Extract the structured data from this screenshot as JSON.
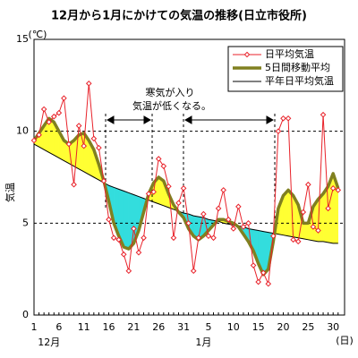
{
  "chart_data": {
    "type": "line",
    "title": "12月から1月にかけての気温の推移(日立市役所)",
    "y_unit": "(℃)",
    "y_label": "気温",
    "x_unit": "(日)",
    "annotation": [
      "寒気が入り",
      "気温が低くなる。"
    ],
    "categories": [
      "1",
      null,
      null,
      null,
      null,
      "6",
      null,
      null,
      null,
      null,
      "11",
      null,
      null,
      null,
      null,
      "16",
      null,
      null,
      null,
      null,
      "21",
      null,
      null,
      null,
      null,
      "26",
      null,
      null,
      null,
      null,
      "31",
      null,
      null,
      null,
      null,
      "5",
      null,
      null,
      null,
      null,
      "10",
      null,
      null,
      null,
      null,
      "15",
      null,
      null,
      null,
      null,
      "20",
      null,
      null,
      null,
      null,
      "25",
      null,
      null,
      null,
      null,
      "30",
      null
    ],
    "x_groups": [
      {
        "label": "12月",
        "start": 0
      },
      {
        "label": "1月",
        "start": 31
      }
    ],
    "ylim": [
      0,
      15
    ],
    "yticks": [
      0,
      5,
      10,
      15
    ],
    "grid": true,
    "fill_above": "#ffff33",
    "fill_below": "#33dddd",
    "series": [
      {
        "name": "日平均気温",
        "color": "#e8222a",
        "style": "markers",
        "values": [
          9.5,
          9.8,
          11.2,
          10.5,
          10.8,
          11.0,
          11.8,
          9.3,
          7.1,
          10.3,
          9.2,
          12.6,
          9.6,
          9.1,
          7.3,
          5.2,
          4.2,
          4.1,
          3.3,
          2.4,
          4.7,
          3.4,
          4.2,
          6.6,
          6.7,
          8.5,
          8.1,
          7.0,
          4.2,
          6.1,
          6.9,
          5.0,
          2.4,
          4.2,
          5.5,
          4.3,
          4.2,
          5.8,
          6.8,
          5.2,
          4.7,
          5.9,
          4.8,
          5.0,
          2.7,
          1.8,
          2.3,
          1.7,
          4.3,
          10.0,
          10.7,
          10.7,
          4.1,
          4.0,
          5.6,
          7.1,
          4.8,
          4.6,
          10.9,
          5.8,
          6.9,
          6.8
        ]
      },
      {
        "name": "5日間移動平均",
        "color": "#808020",
        "style": "thick",
        "values": [
          9.5,
          9.9,
          10.3,
          10.7,
          10.5,
          10.0,
          9.5,
          9.3,
          9.5,
          9.8,
          9.9,
          9.5,
          9.0,
          8.2,
          7.3,
          6.2,
          5.0,
          4.3,
          3.7,
          3.6,
          3.9,
          4.6,
          5.6,
          6.6,
          7.2,
          7.5,
          7.3,
          6.6,
          6.0,
          5.6,
          5.3,
          4.7,
          4.3,
          4.1,
          4.3,
          4.6,
          4.9,
          5.2,
          5.2,
          5.1,
          5.0,
          4.8,
          4.4,
          4.0,
          3.5,
          2.8,
          2.2,
          2.5,
          4.0,
          5.8,
          6.5,
          6.8,
          6.5,
          6.0,
          5.0,
          5.0,
          5.9,
          6.3,
          6.6,
          7.0,
          7.7,
          6.9
        ]
      },
      {
        "name": "平年日平均気温",
        "color": "#000000",
        "style": "thin",
        "values": [
          9.3,
          9.15,
          9.0,
          8.85,
          8.7,
          8.55,
          8.4,
          8.25,
          8.1,
          7.95,
          7.8,
          7.65,
          7.5,
          7.35,
          7.2,
          7.05,
          6.95,
          6.85,
          6.75,
          6.65,
          6.55,
          6.45,
          6.35,
          6.25,
          6.15,
          6.05,
          5.95,
          5.85,
          5.75,
          5.65,
          5.55,
          5.5,
          5.4,
          5.35,
          5.3,
          5.2,
          5.15,
          5.1,
          5.0,
          4.95,
          4.9,
          4.85,
          4.8,
          4.7,
          4.65,
          4.6,
          4.55,
          4.5,
          4.45,
          4.4,
          4.35,
          4.3,
          4.25,
          4.2,
          4.15,
          4.1,
          4.05,
          4.0,
          4.0,
          3.95,
          3.9,
          3.9
        ]
      }
    ]
  }
}
